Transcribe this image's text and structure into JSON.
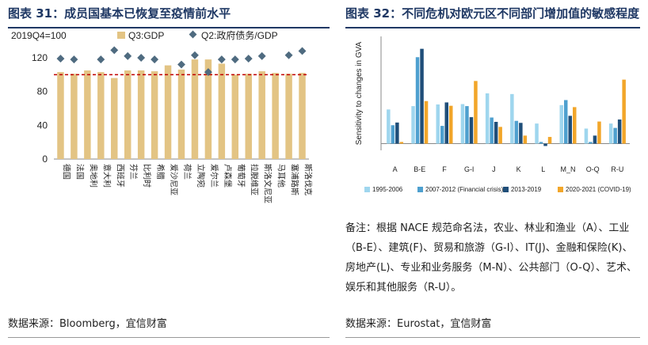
{
  "left": {
    "title": "图表 31：成员国基本已恢复至疫情前水平",
    "source": "数据来源：Bloomberg，宜信财富",
    "chart_data": {
      "type": "bar",
      "base_label": "2019Q4=100",
      "categories": [
        "德国",
        "法国",
        "奥地利",
        "意大利",
        "西班牙",
        "芬兰",
        "比利时",
        "希腊",
        "爱沙尼亚",
        "荷兰",
        "立陶宛",
        "爱尔兰",
        "卢森堡",
        "葡萄牙",
        "拉脱维亚",
        "斯洛文尼亚",
        "马耳他",
        "塞浦路斯",
        "斯洛伐克"
      ],
      "series": [
        {
          "name": "Q3:GDP",
          "type": "bar",
          "color": "#e3c484",
          "values": [
            103,
            101,
            105,
            103,
            96,
            105,
            105,
            104,
            111,
            106,
            118,
            118,
            113,
            100,
            101,
            104,
            102,
            101,
            102
          ]
        },
        {
          "name": "Q2:政府债务/GDP",
          "type": "scatter",
          "color": "#4f6b80",
          "values": [
            119,
            118,
            null,
            118,
            129,
            122,
            120,
            118,
            null,
            112,
            123,
            103,
            118,
            118,
            119,
            122,
            null,
            123,
            128
          ]
        }
      ],
      "reference_line": 100,
      "ylim": [
        0,
        135
      ],
      "yticks": [
        0,
        40,
        80,
        120
      ]
    }
  },
  "right": {
    "title": "图表 32：不同危机对欧元区不同部门增加值的敏感程度",
    "source": "数据来源：Eurostat，宜信财富",
    "note": "备注：根据 NACE 规范命名法，农业、林业和渔业（A）、工业（B-E）、建筑(F)、贸易和旅游（G-I）、IT(J)、金融和保险(K)、房地产(L)、专业和业务服务（M-N）、公共部门（O-Q）、艺术、娱乐和其他服务（R-U）。",
    "chart_data": {
      "type": "bar",
      "ylabel": "Sensitivity to changes in GVA",
      "categories": [
        "A",
        "B-E",
        "F",
        "G-I",
        "J",
        "K",
        "L",
        "M_N",
        "O-Q",
        "R-U"
      ],
      "series": [
        {
          "name": "1995-2006",
          "color": "#9fd6ee",
          "values": [
            1.02,
            1.12,
            1.17,
            1.18,
            1.5,
            1.48,
            0.6,
            1.15,
            0.45,
            0.6
          ]
        },
        {
          "name": "2007-2012 (Financial crisis)",
          "color": "#4ea0cf",
          "values": [
            0.55,
            2.58,
            0.53,
            1.12,
            0.78,
            0.68,
            0.05,
            1.3,
            0.05,
            0.47
          ]
        },
        {
          "name": "2013-2019",
          "color": "#1f4e79",
          "values": [
            0.63,
            2.83,
            1.23,
            0.79,
            0.65,
            0.62,
            -0.07,
            0.83,
            0.24,
            0.72
          ]
        },
        {
          "name": "2020-2021 (COVID-19)",
          "color": "#f2a62a",
          "values": [
            0.05,
            1.27,
            1.13,
            1.87,
            0.5,
            0.24,
            0.2,
            1.09,
            0.66,
            1.91
          ]
        }
      ],
      "ylim": [
        -0.2,
        3.2
      ]
    }
  }
}
